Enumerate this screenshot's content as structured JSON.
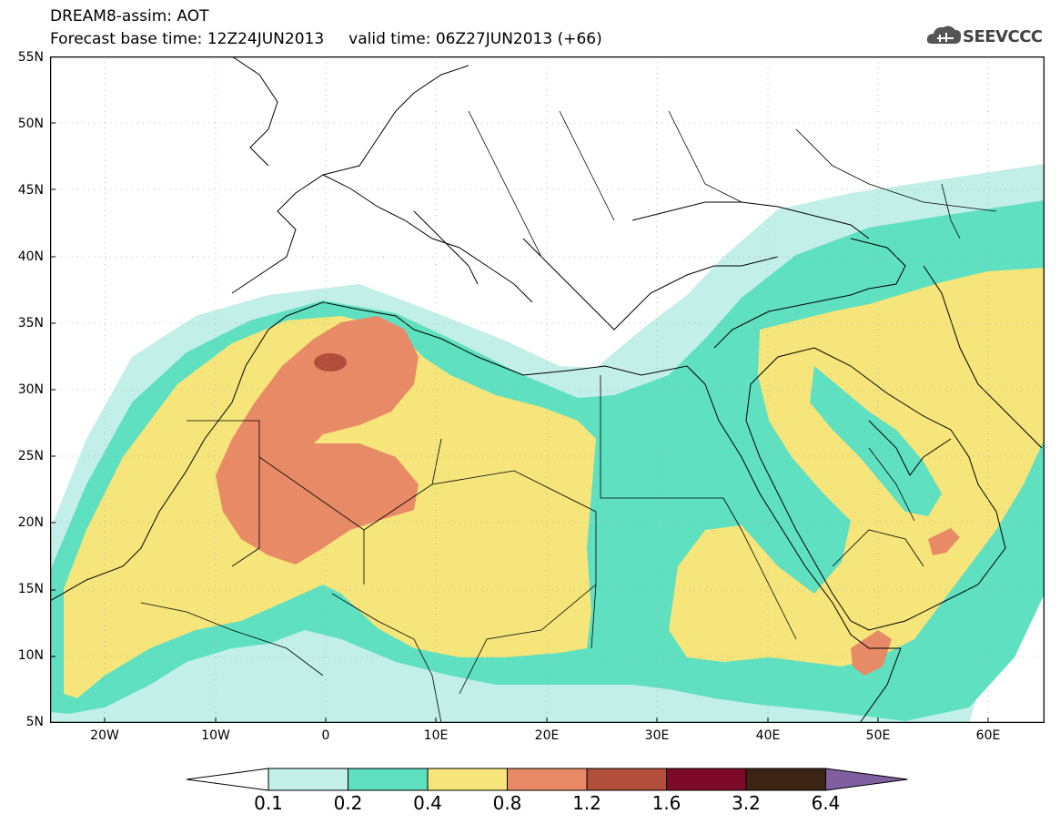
{
  "title_line1": "DREAM8-assim: AOT",
  "title_line2": "Forecast base time: 12Z24JUN2013     valid time: 06Z27JUN2013 (+66)",
  "logo_text": "SEEVCCC",
  "lat_labels": [
    "55N",
    "50N",
    "45N",
    "40N",
    "35N",
    "30N",
    "25N",
    "20N",
    "15N",
    "10N",
    "5N"
  ],
  "lon_labels": [
    "20W",
    "10W",
    "0",
    "10E",
    "20E",
    "30E",
    "40E",
    "50E",
    "60E"
  ],
  "colorbar": {
    "labels": [
      "0.1",
      "0.2",
      "0.4",
      "0.8",
      "1.2",
      "1.6",
      "3.2",
      "6.4"
    ],
    "colors": [
      "#ffffff",
      "#c2efe8",
      "#5fe0c0",
      "#f5e57a",
      "#e88a66",
      "#b24e3c",
      "#7c0a28",
      "#3b2414",
      "#7f5fa0"
    ]
  },
  "colors": {
    "level_0_1": "#c2efe8",
    "level_0_2": "#5fe0c0",
    "level_0_4": "#f5e57a",
    "level_0_8": "#e88a66",
    "level_1_2": "#b24e3c"
  }
}
